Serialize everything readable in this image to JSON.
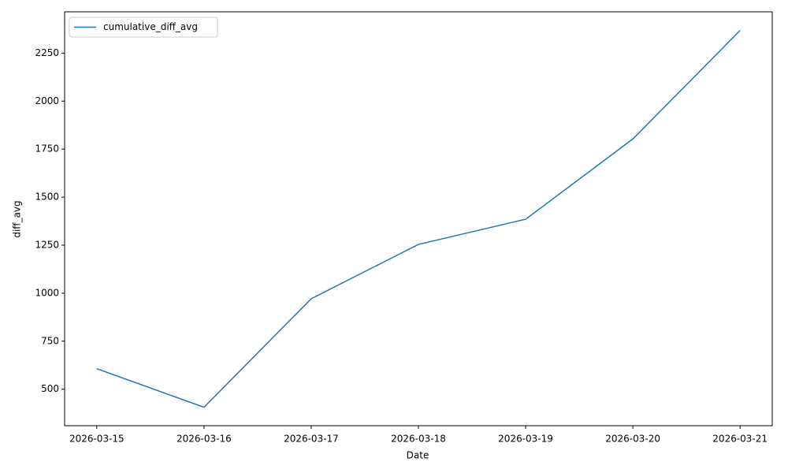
{
  "chart_data": {
    "type": "line",
    "categories": [
      "2026-03-15",
      "2026-03-16",
      "2026-03-17",
      "2026-03-18",
      "2026-03-19",
      "2026-03-20",
      "2026-03-21"
    ],
    "series": [
      {
        "name": "cumulative_diff_avg",
        "color": "#1f77b4",
        "values": [
          607,
          406,
          971,
          1254,
          1385,
          1803,
          2368
        ]
      }
    ],
    "ylim": [
      310,
      2465
    ],
    "yticks": [
      500,
      750,
      1000,
      1250,
      1500,
      1750,
      2000,
      2250
    ],
    "xlabel": "Date",
    "ylabel": "diff_avg",
    "legend": "upper left",
    "grid": false
  }
}
